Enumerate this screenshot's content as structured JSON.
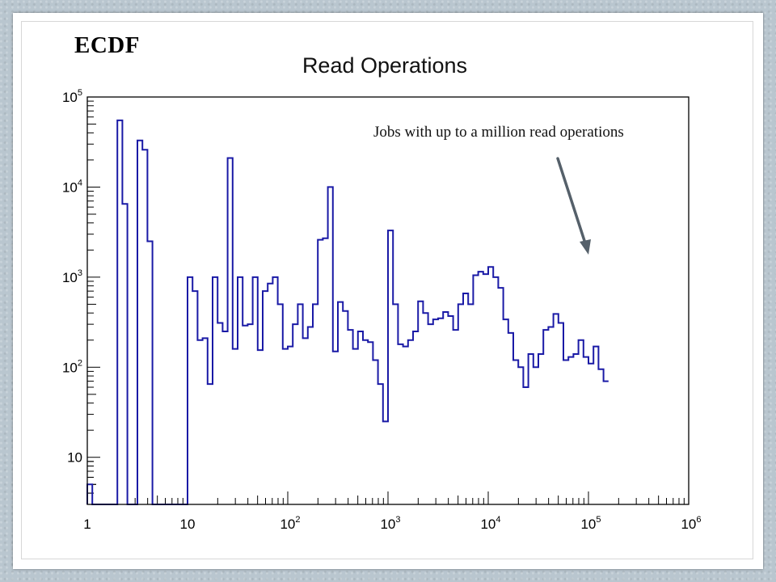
{
  "slide": {
    "title": "ECDF",
    "annotation": "Jobs with up to a million read operations"
  },
  "colors": {
    "histogram": "#1a1aa6",
    "arrow": "#55606a",
    "frame": "#000000"
  },
  "chart_data": {
    "type": "histogram",
    "title": "Read Operations",
    "xlabel": "",
    "ylabel": "",
    "x_scale": "log",
    "y_scale": "log",
    "xlim": [
      1,
      1000000
    ],
    "ylim": [
      3,
      100000
    ],
    "grid": false,
    "legend": "none",
    "x_ticks": [
      {
        "base": "1",
        "exp": ""
      },
      {
        "base": "10",
        "exp": ""
      },
      {
        "base": "10",
        "exp": "2"
      },
      {
        "base": "10",
        "exp": "3"
      },
      {
        "base": "10",
        "exp": "4"
      },
      {
        "base": "10",
        "exp": "5"
      },
      {
        "base": "10",
        "exp": "6"
      }
    ],
    "y_ticks": [
      {
        "base": "10",
        "exp": ""
      },
      {
        "base": "10",
        "exp": "2"
      },
      {
        "base": "10",
        "exp": "3"
      },
      {
        "base": "10",
        "exp": "4"
      },
      {
        "base": "10",
        "exp": "5"
      }
    ],
    "bins_per_decade": 20,
    "bin_counts": [
      5,
      0,
      0,
      0,
      0,
      0,
      55000,
      6500,
      0,
      0,
      33000,
      26000,
      2500,
      0,
      0,
      0,
      0,
      0,
      0,
      0,
      1000,
      700,
      200,
      210,
      65,
      1000,
      310,
      250,
      21000,
      160,
      1000,
      290,
      300,
      1000,
      155,
      700,
      850,
      1000,
      500,
      160,
      170,
      300,
      500,
      210,
      280,
      500,
      2600,
      2700,
      10000,
      150,
      530,
      420,
      260,
      160,
      250,
      200,
      190,
      120,
      65,
      25,
      3300,
      500,
      180,
      170,
      200,
      250,
      540,
      400,
      300,
      340,
      350,
      410,
      370,
      260,
      500,
      660,
      500,
      1050,
      1150,
      1080,
      1300,
      1000,
      760,
      340,
      240,
      120,
      100,
      60,
      140,
      100,
      140,
      260,
      280,
      390,
      310,
      120,
      130,
      140,
      200,
      130,
      110,
      170,
      95,
      70
    ]
  }
}
